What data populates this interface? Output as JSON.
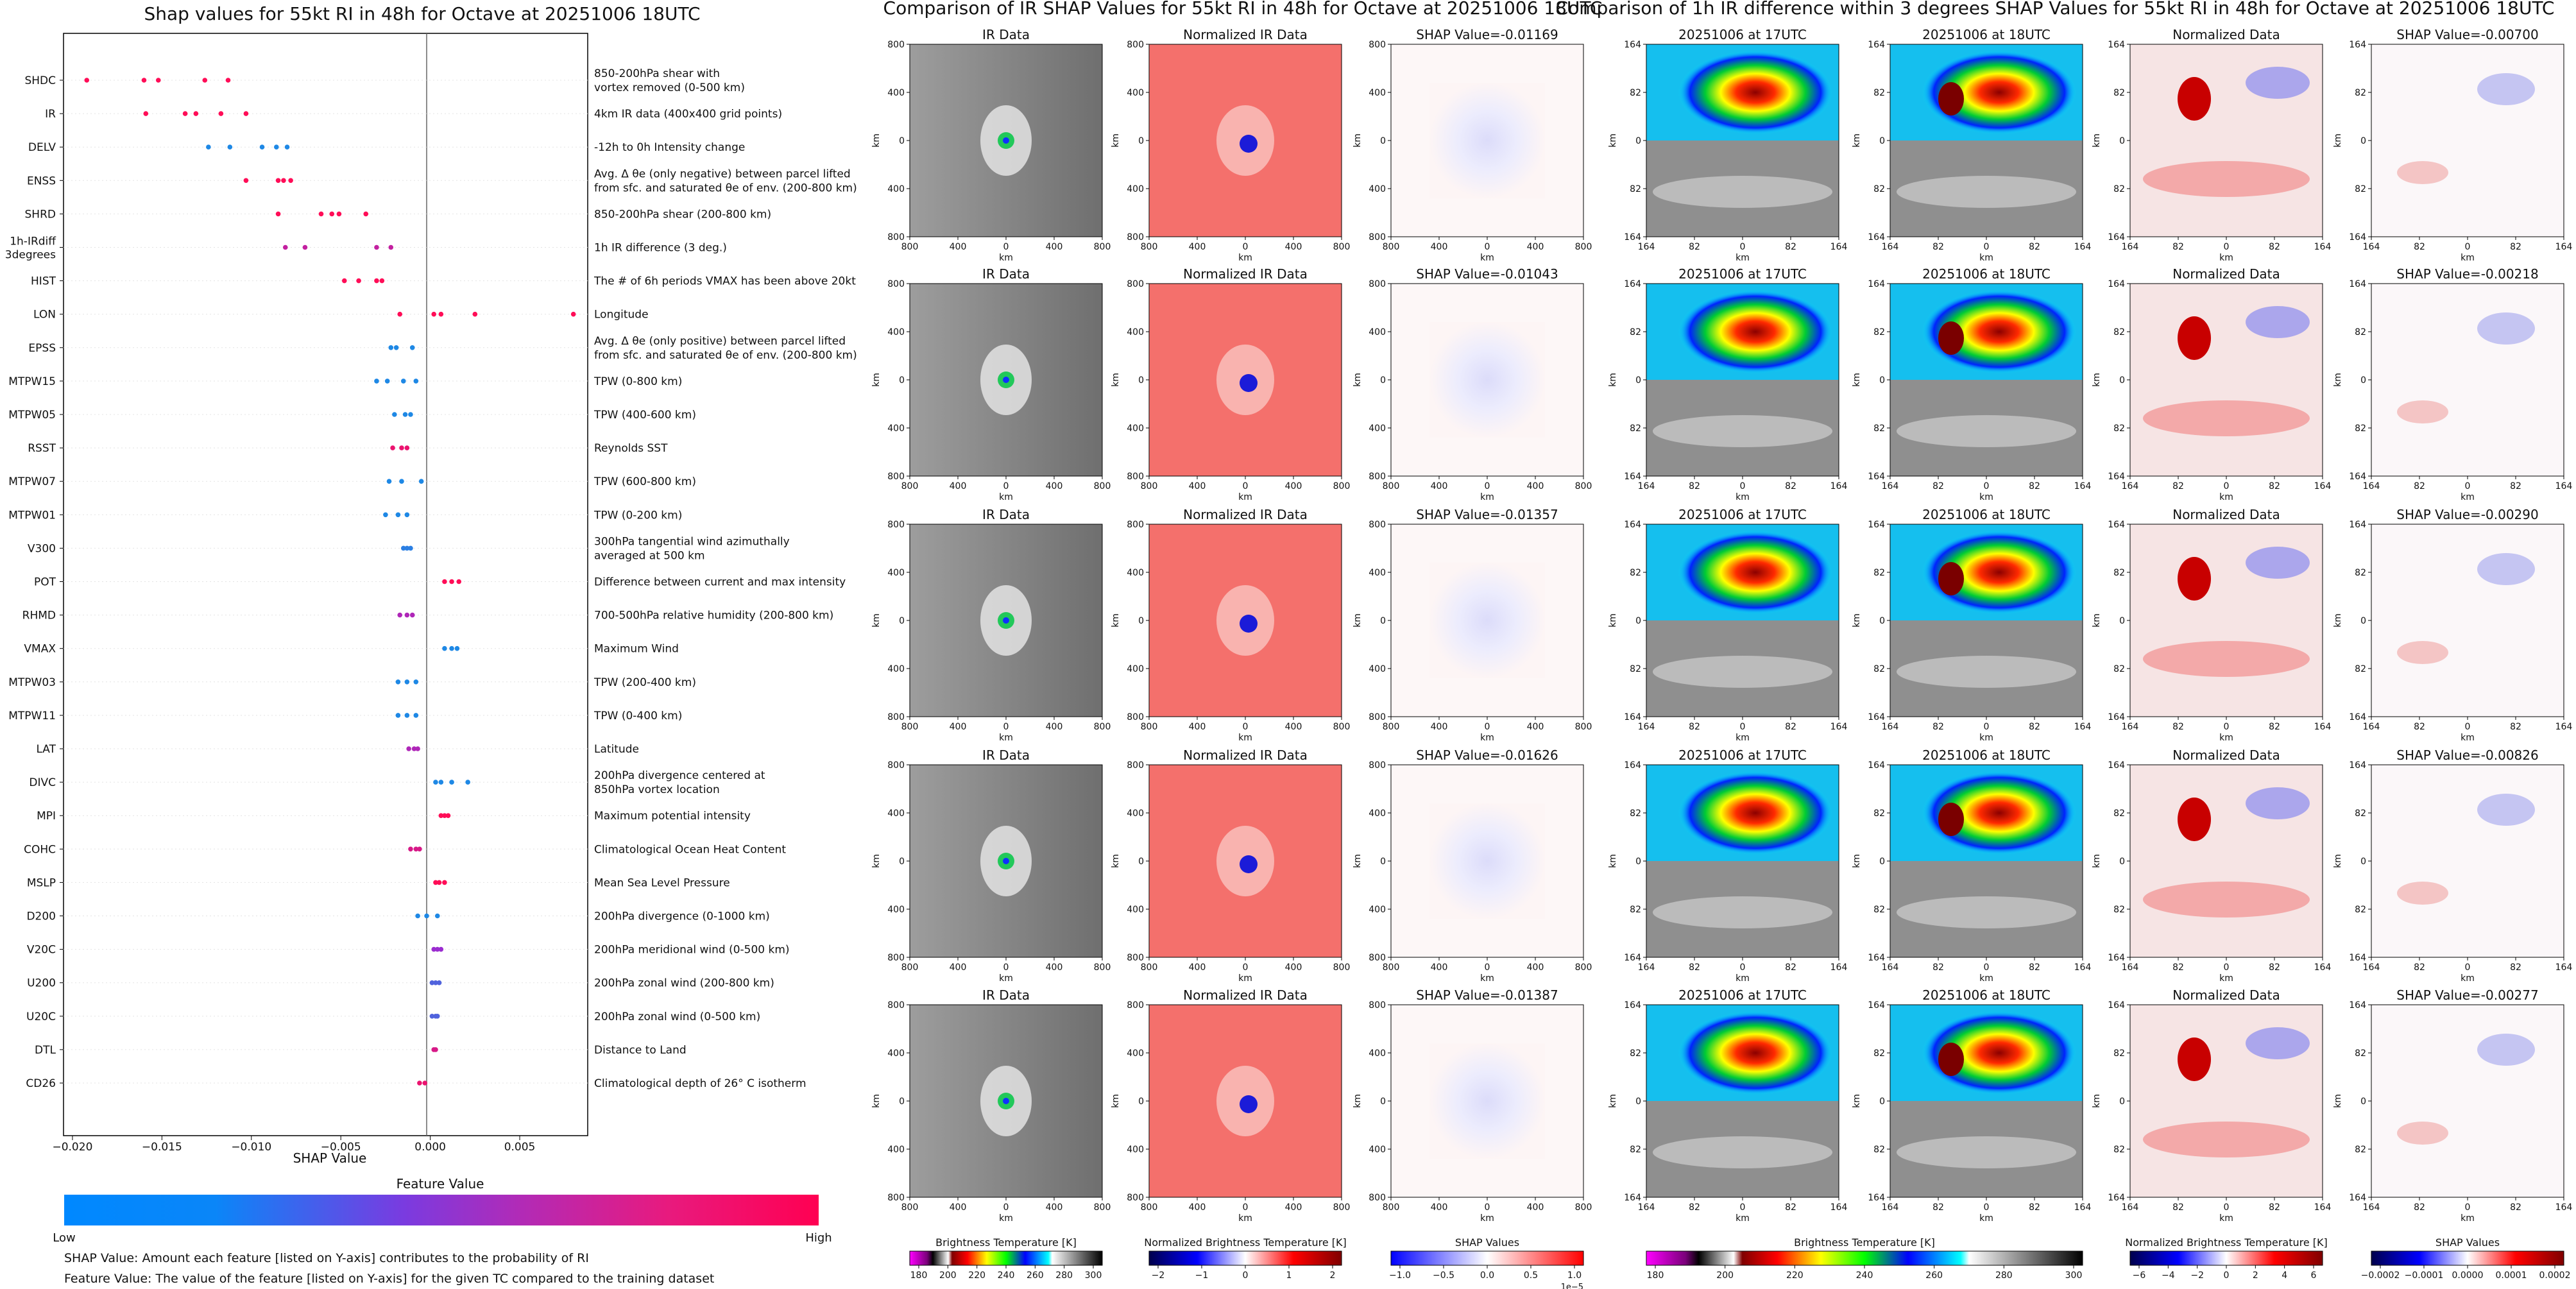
{
  "shap_panel": {
    "title": "Shap values for 55kt RI in 48h for Octave at 20251006 18UTC",
    "xlabel": "SHAP Value",
    "colorbar_title": "Feature Value",
    "colorbar_low": "Low",
    "colorbar_high": "High",
    "footnote_1": "SHAP Value: Amount each feature [listed on Y-axis] contributes to the probability of RI",
    "footnote_2": "Feature Value: The value of the feature [listed on Y-axis] for the given TC compared to the training dataset"
  },
  "ir_panel": {
    "title": "Comparison of IR SHAP Values for 55kt RI in 48h for Octave at 20251006 18UTC",
    "col_titles": [
      "IR Data",
      "Normalized IR Data"
    ],
    "shap_titles": [
      "SHAP Value=-0.01169",
      "SHAP Value=-0.01043",
      "SHAP Value=-0.01357",
      "SHAP Value=-0.01626",
      "SHAP Value=-0.01387"
    ],
    "axis_label": "km",
    "ticks_y": [
      "800",
      "400",
      "0",
      "400",
      "800"
    ],
    "ticks_x": [
      "800",
      "400",
      "0",
      "400",
      "800"
    ],
    "cb1": {
      "label": "Brightness Temperature [K]",
      "ticks": [
        "180",
        "200",
        "220",
        "240",
        "260",
        "280",
        "300"
      ]
    },
    "cb2": {
      "label": "Normalized Brightness Temperature [K]",
      "ticks": [
        "−2",
        "−1",
        "0",
        "1",
        "2"
      ]
    },
    "cb3": {
      "label": "SHAP Values",
      "ticks": [
        "−1.0",
        "−0.5",
        "0.0",
        "0.5",
        "1.0"
      ],
      "exponent": "1e−5"
    }
  },
  "diff_panel": {
    "title": "Comparison of 1h IR difference within 3 degrees SHAP Values for 55kt RI in 48h for Octave at 20251006 18UTC",
    "col_titles": [
      "20251006 at 17UTC",
      "20251006 at 18UTC",
      "Normalized Data"
    ],
    "shap_titles": [
      "SHAP Value=-0.00700",
      "SHAP Value=-0.00218",
      "SHAP Value=-0.00290",
      "SHAP Value=-0.00826",
      "SHAP Value=-0.00277"
    ],
    "axis_label": "km",
    "ticks_y": [
      "164",
      "82",
      "0",
      "82",
      "164"
    ],
    "ticks_x": [
      "164",
      "82",
      "0",
      "82",
      "164"
    ],
    "cb1": {
      "label": "Brightness Temperature [K]",
      "ticks": [
        "180",
        "200",
        "220",
        "240",
        "260",
        "280",
        "300"
      ]
    },
    "cb2": {
      "label": "Normalized Brightness Temperature [K]",
      "ticks": [
        "−6",
        "−4",
        "−2",
        "0",
        "2",
        "4",
        "6"
      ]
    },
    "cb3": {
      "label": "SHAP Values",
      "ticks": [
        "−0.0002",
        "−0.0001",
        "0.0000",
        "0.0001",
        "0.0002"
      ]
    }
  },
  "colors": {
    "low": "#1E88E5",
    "high": "#FF0D57",
    "mid": "#9B2CD0"
  },
  "chart_data": {
    "type": "scatter",
    "title": "Shap values for 55kt RI in 48h for Octave at 20251006 18UTC",
    "xlabel": "SHAP Value",
    "xlim": [
      -0.0205,
      0.0088
    ],
    "x_ticks": [
      "−0.020",
      "−0.015",
      "−0.010",
      "−0.005",
      "0.000",
      "0.005"
    ],
    "features": [
      {
        "name": "SHDC",
        "desc": "850-200hPa shear with\nvortex removed (0-500 km)",
        "values": [
          -0.0192,
          -0.016,
          -0.0152,
          -0.0126,
          -0.0113
        ],
        "levels": [
          1,
          1,
          1,
          1,
          1
        ]
      },
      {
        "name": "IR",
        "desc": "4km IR data (400x400 grid points)",
        "values": [
          -0.0159,
          -0.0137,
          -0.0131,
          -0.0117,
          -0.0103
        ],
        "levels": [
          1,
          1,
          1,
          1,
          1
        ]
      },
      {
        "name": "DELV",
        "desc": "-12h to 0h Intensity change",
        "values": [
          -0.0124,
          -0.0112,
          -0.0094,
          -0.0086,
          -0.008
        ],
        "levels": [
          0,
          0,
          0,
          0,
          0
        ]
      },
      {
        "name": "ENSS",
        "desc": "Avg. Δ θe (only negative) between parcel lifted\nfrom sfc. and saturated θe of env. (200-800 km)",
        "values": [
          -0.0103,
          -0.0085,
          -0.0082,
          -0.0078
        ],
        "levels": [
          1,
          1,
          1,
          1
        ]
      },
      {
        "name": "SHRD",
        "desc": "850-200hPa shear (200-800 km)",
        "values": [
          -0.0085,
          -0.0061,
          -0.0055,
          -0.0051,
          -0.0036
        ],
        "levels": [
          1,
          1,
          1,
          1,
          1
        ]
      },
      {
        "name": "1h-IRdiff\n3degrees",
        "desc": "1h IR difference (3 deg.)",
        "values": [
          -0.0081,
          -0.007,
          -0.003,
          -0.0022
        ],
        "levels": [
          0.7,
          0.7,
          0.7,
          0.7
        ]
      },
      {
        "name": "HIST",
        "desc": "The # of 6h periods VMAX has been above 20kt",
        "values": [
          -0.0048,
          -0.004,
          -0.003,
          -0.0027
        ],
        "levels": [
          1,
          1,
          1,
          1
        ]
      },
      {
        "name": "LON",
        "desc": "Longitude",
        "values": [
          -0.0017,
          0.0002,
          0.0006,
          0.0025,
          0.008
        ],
        "levels": [
          1,
          1,
          1,
          1,
          1
        ]
      },
      {
        "name": "EPSS",
        "desc": "Avg. Δ θe (only positive) between parcel lifted\nfrom sfc. and saturated θe of env. (200-800 km)",
        "values": [
          -0.0022,
          -0.0019,
          -0.001
        ],
        "levels": [
          0,
          0,
          0
        ]
      },
      {
        "name": "MTPW15",
        "desc": "TPW (0-800 km)",
        "values": [
          -0.003,
          -0.0024,
          -0.0015,
          -0.0008
        ],
        "levels": [
          0,
          0,
          0,
          0
        ]
      },
      {
        "name": "MTPW05",
        "desc": "TPW (400-600 km)",
        "values": [
          -0.002,
          -0.0014,
          -0.0011
        ],
        "levels": [
          0,
          0,
          0
        ]
      },
      {
        "name": "RSST",
        "desc": "Reynolds SST",
        "values": [
          -0.0021,
          -0.0016,
          -0.0013
        ],
        "levels": [
          0.9,
          0.9,
          0.9
        ]
      },
      {
        "name": "MTPW07",
        "desc": "TPW (600-800 km)",
        "values": [
          -0.0023,
          -0.0016,
          -0.0005
        ],
        "levels": [
          0,
          0,
          0
        ]
      },
      {
        "name": "MTPW01",
        "desc": "TPW (0-200 km)",
        "values": [
          -0.0025,
          -0.0018,
          -0.0013
        ],
        "levels": [
          0,
          0,
          0
        ]
      },
      {
        "name": "V300",
        "desc": "300hPa tangential wind azimuthally\naveraged at 500 km",
        "values": [
          -0.0015,
          -0.0013,
          -0.0011
        ],
        "levels": [
          0.05,
          0.05,
          0.05
        ]
      },
      {
        "name": "POT",
        "desc": "Difference between current and max intensity",
        "values": [
          0.0008,
          0.0012,
          0.0016
        ],
        "levels": [
          1,
          1,
          1
        ]
      },
      {
        "name": "RHMD",
        "desc": "700-500hPa relative humidity (200-800 km)",
        "values": [
          -0.0017,
          -0.0013,
          -0.001
        ],
        "levels": [
          0.6,
          0.6,
          0.6
        ]
      },
      {
        "name": "VMAX",
        "desc": "Maximum Wind",
        "values": [
          0.0008,
          0.0012,
          0.0015
        ],
        "levels": [
          0,
          0,
          0
        ]
      },
      {
        "name": "MTPW03",
        "desc": "TPW (200-400 km)",
        "values": [
          -0.0018,
          -0.0013,
          -0.0008
        ],
        "levels": [
          0,
          0,
          0
        ]
      },
      {
        "name": "MTPW11",
        "desc": "TPW (0-400 km)",
        "values": [
          -0.0018,
          -0.0013,
          -0.0008
        ],
        "levels": [
          0,
          0,
          0
        ]
      },
      {
        "name": "LAT",
        "desc": "Latitude",
        "values": [
          -0.0012,
          -0.0009,
          -0.0007
        ],
        "levels": [
          0.6,
          0.6,
          0.6
        ]
      },
      {
        "name": "DIVC",
        "desc": "200hPa divergence centered at\n850hPa vortex location",
        "values": [
          0.0003,
          0.0006,
          0.0012,
          0.0021
        ],
        "levels": [
          0,
          0,
          0,
          0
        ]
      },
      {
        "name": "MPI",
        "desc": "Maximum potential intensity",
        "values": [
          0.0006,
          0.0008,
          0.001
        ],
        "levels": [
          1,
          1,
          1
        ]
      },
      {
        "name": "COHC",
        "desc": "Climatological Ocean Heat Content",
        "values": [
          -0.0011,
          -0.0008,
          -0.0006
        ],
        "levels": [
          0.8,
          0.8,
          0.8
        ]
      },
      {
        "name": "MSLP",
        "desc": "Mean Sea Level Pressure",
        "values": [
          0.0003,
          0.0005,
          0.0008
        ],
        "levels": [
          1,
          1,
          1
        ]
      },
      {
        "name": "D200",
        "desc": "200hPa divergence (0-1000 km)",
        "values": [
          -0.0007,
          -0.0002,
          0.0004
        ],
        "levels": [
          0,
          0,
          0
        ]
      },
      {
        "name": "V20C",
        "desc": "200hPa meridional wind (0-500 km)",
        "values": [
          0.0002,
          0.0004,
          0.0006
        ],
        "levels": [
          0.5,
          0.5,
          0.5
        ]
      },
      {
        "name": "U200",
        "desc": "200hPa zonal wind (200-800 km)",
        "values": [
          0.0001,
          0.0003,
          0.0005
        ],
        "levels": [
          0.2,
          0.2,
          0.2
        ]
      },
      {
        "name": "U20C",
        "desc": "200hPa zonal wind (0-500 km)",
        "values": [
          0.0001,
          0.0003,
          0.0004
        ],
        "levels": [
          0.2,
          0.2,
          0.2
        ]
      },
      {
        "name": "DTL",
        "desc": "Distance to Land",
        "values": [
          0.0002,
          0.0003
        ],
        "levels": [
          0.8,
          0.8
        ]
      },
      {
        "name": "CD26",
        "desc": "Climatological depth of 26° C isotherm",
        "values": [
          -0.0006,
          -0.0003
        ],
        "levels": [
          0.9,
          0.9
        ]
      }
    ]
  }
}
